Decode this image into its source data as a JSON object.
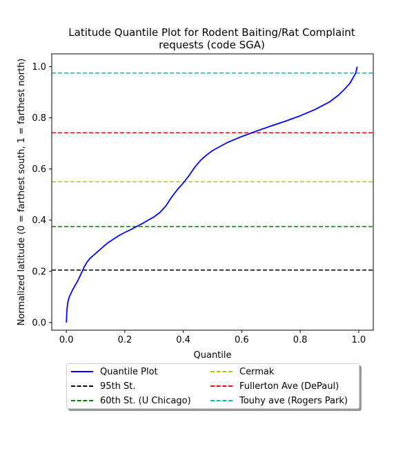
{
  "chart_data": {
    "type": "line",
    "title": [
      "Latitude Quantile Plot for Rodent Baiting/Rat Complaint",
      "requests (code SGA)"
    ],
    "xlabel": "Quantile",
    "ylabel": "Normalized latitude (0 = farthest south, 1 = farthest north)",
    "xlim": [
      -0.05,
      1.05
    ],
    "ylim": [
      -0.03,
      1.05
    ],
    "xticks": [
      "0.0",
      "0.2",
      "0.4",
      "0.6",
      "0.8",
      "1.0"
    ],
    "yticks": [
      "0.0",
      "0.2",
      "0.4",
      "0.6",
      "0.8",
      "1.0"
    ],
    "grid": false,
    "legend_placement": "below plot, two columns",
    "series": [
      {
        "name": "Quantile Plot",
        "color": "#0000ff",
        "style": "solid",
        "x": [
          0.0,
          0.002,
          0.005,
          0.01,
          0.02,
          0.03,
          0.04,
          0.05,
          0.06,
          0.07,
          0.08,
          0.1,
          0.12,
          0.14,
          0.16,
          0.18,
          0.2,
          0.22,
          0.24,
          0.26,
          0.28,
          0.3,
          0.32,
          0.34,
          0.36,
          0.38,
          0.4,
          0.42,
          0.44,
          0.46,
          0.48,
          0.5,
          0.55,
          0.6,
          0.65,
          0.7,
          0.75,
          0.8,
          0.85,
          0.9,
          0.93,
          0.95,
          0.97,
          0.98,
          0.99,
          0.995
        ],
        "y": [
          0.0,
          0.05,
          0.08,
          0.1,
          0.125,
          0.145,
          0.165,
          0.19,
          0.215,
          0.235,
          0.25,
          0.27,
          0.29,
          0.31,
          0.325,
          0.34,
          0.352,
          0.363,
          0.375,
          0.387,
          0.4,
          0.413,
          0.43,
          0.455,
          0.49,
          0.52,
          0.545,
          0.575,
          0.608,
          0.635,
          0.655,
          0.672,
          0.703,
          0.727,
          0.748,
          0.768,
          0.787,
          0.808,
          0.832,
          0.862,
          0.888,
          0.91,
          0.935,
          0.955,
          0.975,
          1.0
        ]
      },
      {
        "name": "95th St.",
        "color": "#000000",
        "style": "dashed",
        "y": 0.205
      },
      {
        "name": "60th St. (U Chicago)",
        "color": "#008000",
        "style": "dashed",
        "y": 0.375
      },
      {
        "name": "Cermak",
        "color": "#bfbf00",
        "style": "dashed",
        "y": 0.55
      },
      {
        "name": "Fullerton Ave (DePaul)",
        "color": "#ff0000",
        "style": "dashed",
        "y": 0.742
      },
      {
        "name": "Touhy ave (Rogers Park)",
        "color": "#00bfbf",
        "style": "dashed",
        "y": 0.975
      }
    ]
  }
}
